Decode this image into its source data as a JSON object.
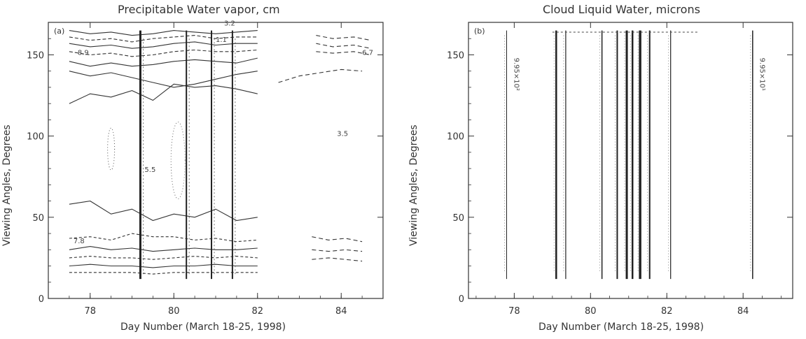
{
  "charts": [
    {
      "id": "a",
      "title": "Precipitable Water vapor, cm",
      "panel_label": "(a)",
      "xlabel": "Day Number (March 18-25, 1998)",
      "ylabel": "Viewing Angles, Degrees"
    },
    {
      "id": "b",
      "title": "Cloud Liquid Water, microns",
      "panel_label": "(b)",
      "xlabel": "Day Number (March 18-25, 1998)",
      "ylabel": "Viewing Angles, Degrees"
    }
  ],
  "chart_data": [
    {
      "type": "contour",
      "title": "Precipitable Water vapor, cm",
      "xlabel": "Day Number (March 18-25, 1998)",
      "ylabel": "Viewing Angles, Degrees",
      "xlim": [
        77.0,
        85.0
      ],
      "ylim": [
        0,
        170
      ],
      "xticks": [
        78,
        80,
        82,
        84
      ],
      "yticks": [
        0,
        50,
        100,
        150
      ],
      "contour_labels": [
        "8.9",
        "6.7",
        "3.5",
        "5.5",
        "7.8",
        "3.2",
        "1.1"
      ],
      "vertical_bands": [
        79.2,
        80.3,
        80.9,
        81.4
      ],
      "upper_contours": [
        {
          "y": [
            165,
            163,
            164,
            162,
            163,
            165,
            164,
            163,
            164,
            165
          ]
        },
        {
          "y": [
            161,
            159,
            160,
            158,
            160,
            161,
            162,
            160,
            161,
            161
          ]
        },
        {
          "y": [
            157,
            155,
            156,
            154,
            155,
            157,
            158,
            156,
            157,
            157
          ]
        },
        {
          "y": [
            152,
            150,
            151,
            149,
            150,
            152,
            153,
            152,
            152,
            153
          ]
        },
        {
          "y": [
            146,
            143,
            145,
            143,
            144,
            146,
            147,
            146,
            145,
            148
          ]
        },
        {
          "y": [
            140,
            137,
            139,
            136,
            133,
            130,
            132,
            135,
            138,
            140
          ]
        },
        {
          "y": [
            120,
            126,
            124,
            128,
            122,
            132,
            130,
            131,
            129,
            126
          ]
        }
      ],
      "lower_contours": [
        {
          "y": [
            58,
            60,
            52,
            55,
            48,
            52,
            50,
            55,
            48,
            50
          ]
        },
        {
          "y": [
            37,
            38,
            36,
            40,
            38,
            38,
            36,
            37,
            35,
            36
          ]
        },
        {
          "y": [
            30,
            32,
            30,
            31,
            29,
            30,
            31,
            30,
            30,
            31
          ]
        },
        {
          "y": [
            25,
            26,
            25,
            25,
            24,
            25,
            26,
            25,
            26,
            25
          ]
        },
        {
          "y": [
            20,
            21,
            20,
            20,
            19,
            20,
            20,
            21,
            20,
            20
          ]
        },
        {
          "y": [
            16,
            16,
            16,
            16,
            15,
            16,
            16,
            16,
            16,
            16
          ]
        }
      ],
      "contour_x": [
        77.5,
        78.0,
        78.5,
        79.0,
        79.5,
        80.0,
        80.5,
        81.0,
        81.5,
        82.0
      ],
      "right_fragments": [
        {
          "x": [
            83.4,
            83.8,
            84.3,
            84.7
          ],
          "y": [
            162,
            160,
            161,
            159
          ]
        },
        {
          "x": [
            83.4,
            83.8,
            84.3,
            84.7
          ],
          "y": [
            157,
            155,
            156,
            154
          ]
        },
        {
          "x": [
            83.4,
            83.8,
            84.3,
            84.7
          ],
          "y": [
            152,
            151,
            152,
            150
          ]
        },
        {
          "x": [
            82.5,
            83.0,
            83.5,
            84.0,
            84.5
          ],
          "y": [
            133,
            137,
            139,
            141,
            140
          ]
        },
        {
          "x": [
            83.3,
            83.7,
            84.1,
            84.5
          ],
          "y": [
            38,
            36,
            37,
            35
          ]
        },
        {
          "x": [
            83.3,
            83.7,
            84.1,
            84.5
          ],
          "y": [
            30,
            29,
            30,
            29
          ]
        },
        {
          "x": [
            83.3,
            83.7,
            84.1,
            84.5
          ],
          "y": [
            24,
            25,
            24,
            23
          ]
        }
      ]
    },
    {
      "type": "contour",
      "title": "Cloud Liquid Water, microns",
      "xlabel": "Day Number (March 18-25, 1998)",
      "ylabel": "Viewing Angles, Degrees",
      "xlim": [
        76.8,
        85.3
      ],
      "ylim": [
        0,
        170
      ],
      "xticks": [
        78,
        80,
        82,
        84
      ],
      "yticks": [
        0,
        50,
        100,
        150
      ],
      "contour_labels": [
        "9.95×10²",
        "9.95×10¹"
      ],
      "vertical_bands": [
        77.8,
        79.1,
        79.35,
        80.3,
        80.7,
        80.95,
        81.1,
        81.3,
        81.55,
        82.1,
        84.25
      ],
      "band_widths": [
        1.0,
        2.5,
        1.2,
        1.5,
        2.0,
        3.0,
        2.5,
        3.5,
        2.0,
        1.2,
        1.5
      ]
    }
  ]
}
